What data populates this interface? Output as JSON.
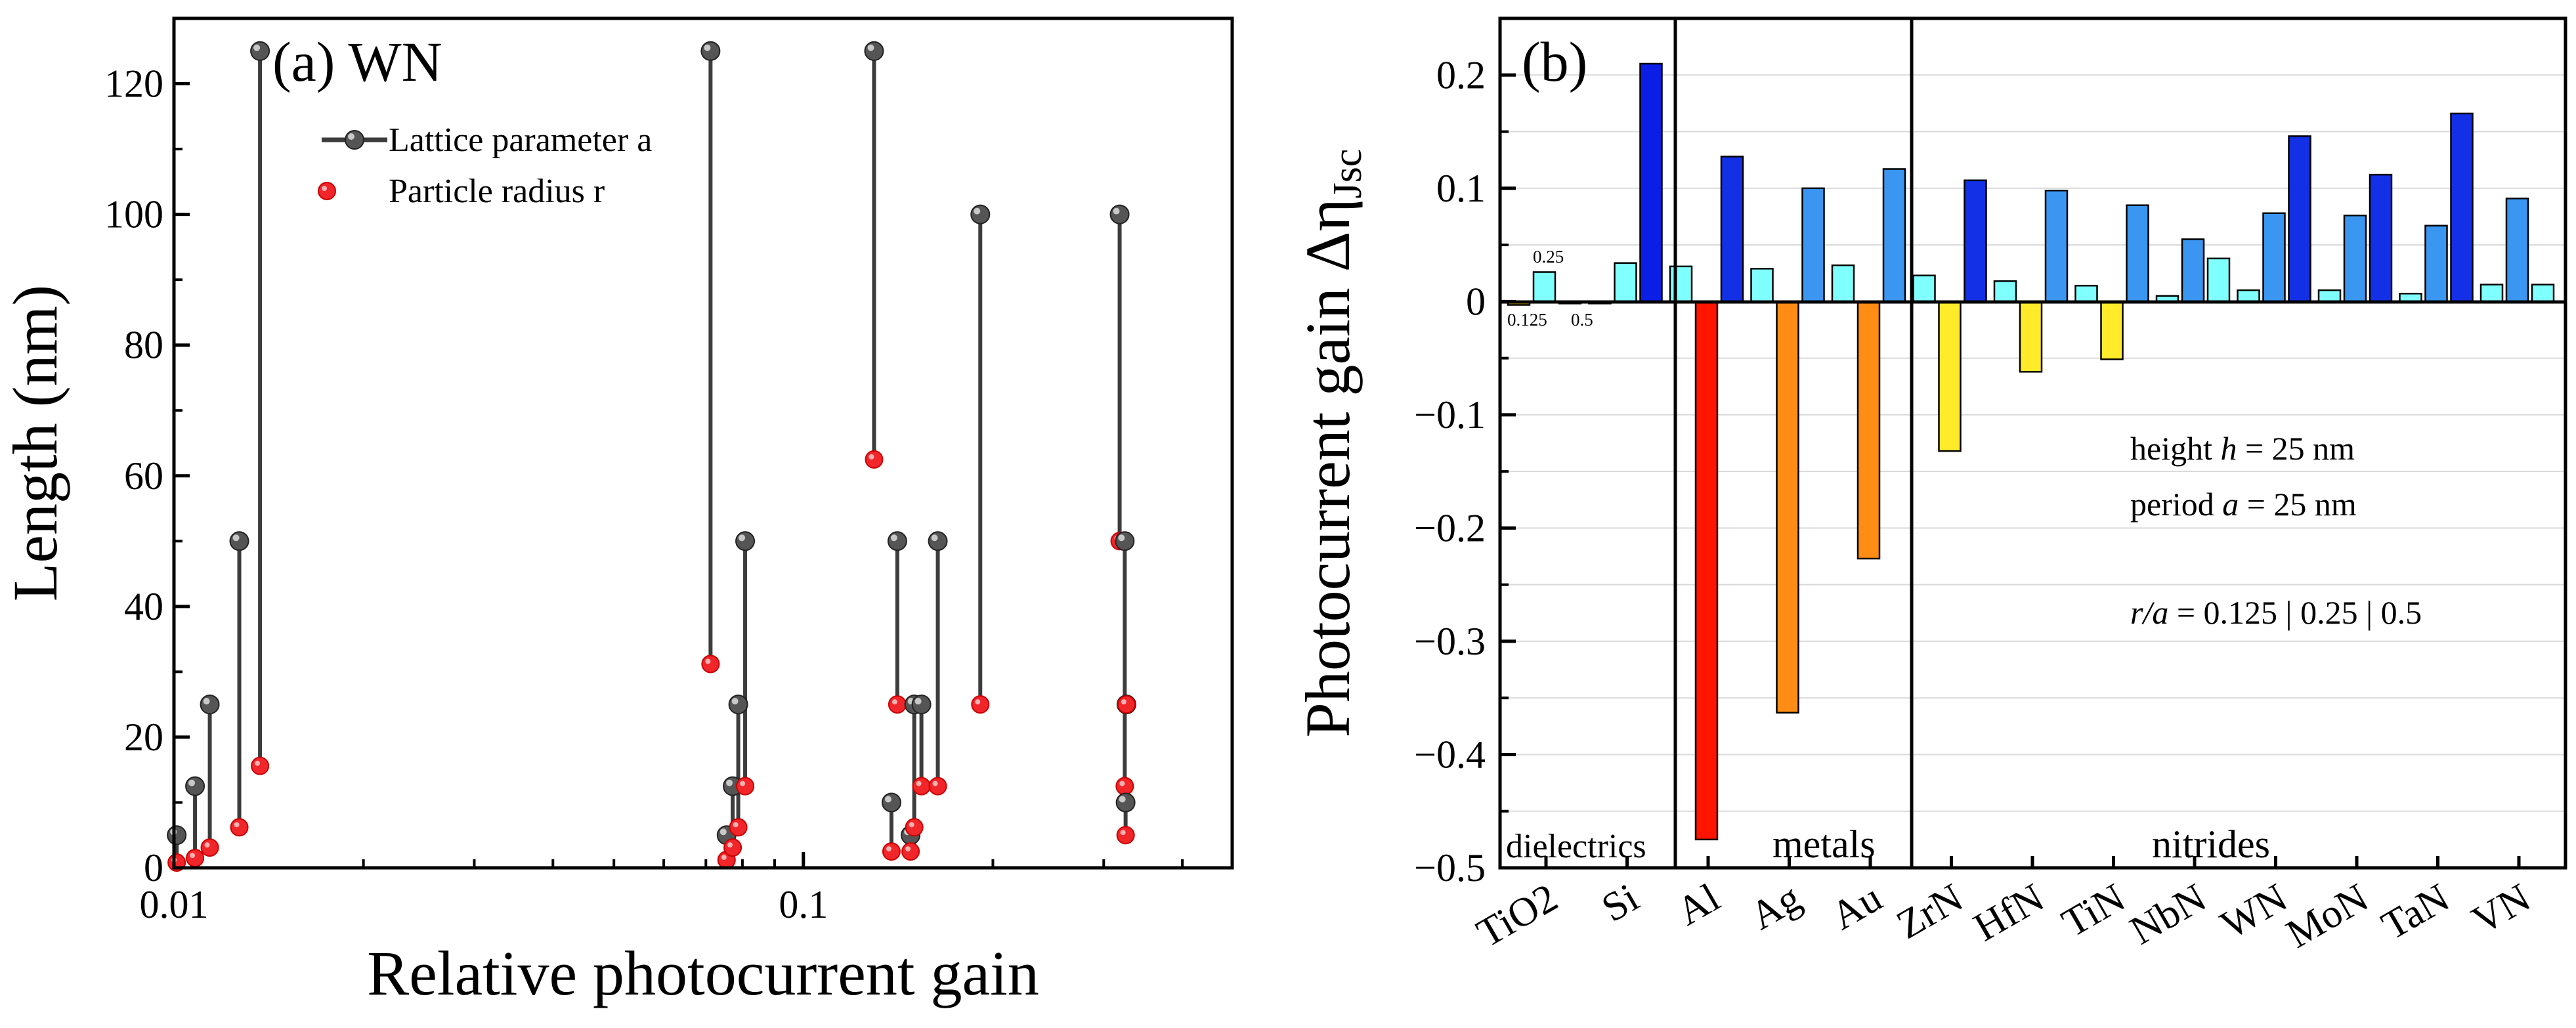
{
  "chart_data": [
    {
      "panel": "(a)",
      "type": "scatter",
      "panel_label": "(a) WN",
      "xlabel": "Relative photocurrent gain",
      "ylabel": "Length (nm)",
      "x_scale": "log",
      "xlim": [
        0.01,
        0.48
      ],
      "ylim": [
        0,
        130
      ],
      "x_ticks": [
        0.01,
        0.1
      ],
      "x_tick_labels": [
        "0.01",
        "0.1"
      ],
      "y_ticks": [
        0,
        20,
        40,
        60,
        80,
        100,
        120
      ],
      "y_tick_labels": [
        "0",
        "20",
        "40",
        "60",
        "80",
        "100",
        "120"
      ],
      "legend": [
        "Lattice parameter a",
        "Particle radius r"
      ],
      "legend_position": "top-left",
      "series": [
        {
          "name": "Lattice parameter a",
          "x": [
            0.0101,
            0.0108,
            0.0114,
            0.0127,
            0.0137,
            0.0712,
            0.0755,
            0.0772,
            0.0788,
            0.0808,
            0.1295,
            0.138,
            0.141,
            0.148,
            0.15,
            0.154,
            0.1635,
            0.191,
            0.318,
            0.324,
            0.325,
            0.326
          ],
          "y": [
            5,
            12.5,
            25,
            50,
            125,
            125,
            5,
            12.5,
            25,
            50,
            125,
            10,
            50,
            5,
            25,
            25,
            50,
            100,
            100,
            50,
            10,
            25
          ]
        },
        {
          "name": "Particle radius r",
          "x": [
            0.0101,
            0.0108,
            0.0114,
            0.0127,
            0.0137,
            0.0712,
            0.0755,
            0.0772,
            0.0788,
            0.0808,
            0.1295,
            0.138,
            0.141,
            0.148,
            0.15,
            0.154,
            0.1635,
            0.191,
            0.318,
            0.324,
            0.325,
            0.326
          ],
          "y": [
            0.8,
            1.5,
            3.1,
            6.2,
            15.6,
            31.2,
            1.2,
            3.1,
            6.2,
            12.5,
            62.5,
            2.5,
            25,
            2.5,
            6.2,
            12.5,
            12.5,
            25,
            50,
            12.5,
            5,
            25
          ]
        }
      ]
    },
    {
      "panel": "(b)",
      "type": "bar",
      "panel_label": "(b)",
      "ylabel_main": "Photocurrent gain Δη",
      "ylabel_sub": "Jsc",
      "ylim": [
        -0.5,
        0.25
      ],
      "y_ticks": [
        -0.5,
        -0.4,
        -0.3,
        -0.2,
        -0.1,
        0,
        0.1,
        0.2
      ],
      "y_tick_labels": [
        "−0.5",
        "−0.4",
        "−0.3",
        "−0.2",
        "−0.1",
        "0",
        "0.1",
        "0.2"
      ],
      "categories": [
        "TiO2",
        "Si",
        "Al",
        "Ag",
        "Au",
        "ZrN",
        "HfN",
        "TiN",
        "NbN",
        "WN",
        "MoN",
        "TaN",
        "VN"
      ],
      "series": [
        {
          "name": "r/a = 0.125",
          "values": [
            -0.003,
            -0.001,
            0.031,
            0.029,
            0.032,
            0.023,
            0.018,
            0.014,
            0.005,
            0.01,
            0.01,
            0.007,
            0.015
          ]
        },
        {
          "name": "r/a = 0.25",
          "values": [
            0.026,
            0.034,
            -0.475,
            -0.363,
            -0.227,
            -0.132,
            -0.062,
            -0.051,
            0.055,
            0.078,
            0.076,
            0.067,
            0.091
          ]
        },
        {
          "name": "r/a = 0.5",
          "values": [
            -0.001,
            0.21,
            0.128,
            0.1,
            0.117,
            0.107,
            0.098,
            0.085,
            0.038,
            0.146,
            0.112,
            0.166,
            0.015
          ]
        }
      ],
      "colors": {
        "TiO2": [
          "#c9a600",
          "#80ffff",
          "#1530d0"
        ],
        "Si": [
          "#80ffff",
          "#80ffff",
          "#0a1ee6"
        ],
        "Al": [
          "#80ffff",
          "#ff1400",
          "#1430e6"
        ],
        "Ag": [
          "#80ffff",
          "#ff8c14",
          "#3a96f0"
        ],
        "Au": [
          "#80ffff",
          "#ff8c14",
          "#3a96f0"
        ],
        "ZrN": [
          "#80ffff",
          "#ffeb2a",
          "#1430e6"
        ],
        "HfN": [
          "#80ffff",
          "#ffeb2a",
          "#3a96f0"
        ],
        "TiN": [
          "#80ffff",
          "#ffeb2a",
          "#3a96f0"
        ],
        "NbN": [
          "#80ffff",
          "#3a96f0",
          "#80ffff"
        ],
        "WN": [
          "#80ffff",
          "#3a96f0",
          "#1430e6"
        ],
        "MoN": [
          "#80ffff",
          "#3a96f0",
          "#1430e6"
        ],
        "TaN": [
          "#80ffff",
          "#3a96f0",
          "#1430e6"
        ],
        "VN": [
          "#80ffff",
          "#3a96f0",
          "#80ffff"
        ]
      },
      "ratio_labels": [
        "0.125",
        "0.25",
        "0.5"
      ],
      "group_labels": [
        "dielectrics",
        "metals",
        "nitrides"
      ],
      "annotations": {
        "height_line": {
          "prefix": "height ",
          "var": "h",
          "suffix": " = 25 nm"
        },
        "period_line": {
          "prefix": "period ",
          "var": "a",
          "suffix": " = 25 nm"
        },
        "ratio_line": {
          "var": "r/a",
          "suffix": " = 0.125 | 0.25 | 0.5"
        }
      },
      "grid": "horizontal"
    }
  ]
}
